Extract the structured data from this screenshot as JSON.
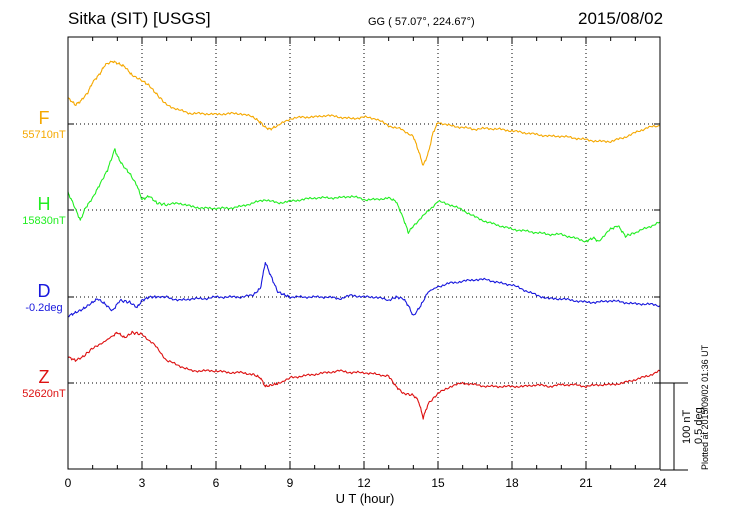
{
  "header": {
    "station": "Sitka (SIT)  [USGS]",
    "coords": "GG ( 57.07°, 224.67°)",
    "date": "2015/08/02"
  },
  "footer": {
    "plotted": "Plotted at 2015/09/02 01:36 UT"
  },
  "scale": {
    "line1": "100 nT",
    "line2": "0.5 deg"
  },
  "chart_data": {
    "type": "line",
    "xlabel": "U T (hour)",
    "xlim": [
      0,
      24
    ],
    "xticks": [
      0,
      3,
      6,
      9,
      12,
      15,
      18,
      21,
      24
    ],
    "grid": true,
    "scale_bar": "100 nT / 0.5 deg",
    "series": [
      {
        "name": "F",
        "baseline_label": "55710nT",
        "color": "#f5a800",
        "unit": "nT",
        "x": [
          0,
          0.3,
          0.5,
          0.8,
          1.0,
          1.3,
          1.5,
          1.8,
          2.0,
          2.3,
          2.6,
          3.0,
          3.3,
          3.6,
          4.0,
          4.5,
          5.0,
          5.5,
          6.0,
          6.5,
          7.0,
          7.5,
          7.8,
          8.0,
          8.2,
          8.5,
          9.0,
          9.5,
          10,
          10.5,
          11,
          11.5,
          12,
          12.5,
          13,
          13.5,
          14,
          14.2,
          14.4,
          14.6,
          14.8,
          15,
          15.5,
          16,
          16.5,
          17,
          17.5,
          18,
          18.5,
          19,
          19.5,
          20,
          20.5,
          21,
          21.5,
          22,
          22.5,
          23,
          23.5,
          24
        ],
        "values": [
          30,
          22,
          26,
          36,
          48,
          58,
          68,
          72,
          70,
          66,
          56,
          50,
          44,
          34,
          22,
          16,
          12,
          12,
          11,
          12,
          12,
          8,
          2,
          -4,
          -6,
          -2,
          6,
          8,
          8,
          10,
          8,
          6,
          8,
          6,
          -2,
          -6,
          -14,
          -30,
          -48,
          -34,
          -10,
          2,
          -2,
          -4,
          -6,
          -5,
          -6,
          -8,
          -10,
          -12,
          -14,
          -14,
          -16,
          -18,
          -20,
          -20,
          -16,
          -10,
          -4,
          -2
        ]
      },
      {
        "name": "H",
        "baseline_label": "15830nT",
        "color": "#22ee22",
        "unit": "nT",
        "x": [
          0,
          0.2,
          0.5,
          0.7,
          1.0,
          1.3,
          1.6,
          1.9,
          2.0,
          2.2,
          2.5,
          2.8,
          3.0,
          3.3,
          3.6,
          4.0,
          4.5,
          5,
          5.5,
          6,
          6.5,
          7,
          7.5,
          8,
          8.5,
          9,
          9.5,
          10,
          10.5,
          11,
          11.5,
          12,
          12.5,
          13,
          13.3,
          13.6,
          13.8,
          14,
          14.5,
          15,
          15.5,
          16,
          16.5,
          17,
          17.5,
          18,
          18.5,
          19,
          19.5,
          20,
          20.5,
          21,
          21.3,
          21.5,
          22,
          22.3,
          22.6,
          23,
          23.5,
          24
        ],
        "values": [
          20,
          8,
          -12,
          2,
          14,
          30,
          46,
          70,
          62,
          52,
          42,
          28,
          12,
          16,
          8,
          6,
          8,
          4,
          2,
          2,
          2,
          4,
          8,
          12,
          8,
          10,
          12,
          14,
          14,
          14,
          16,
          12,
          12,
          14,
          10,
          -10,
          -26,
          -18,
          -4,
          10,
          6,
          0,
          -8,
          -14,
          -18,
          -22,
          -24,
          -26,
          -28,
          -28,
          -32,
          -36,
          -32,
          -36,
          -22,
          -18,
          -30,
          -26,
          -20,
          -14
        ]
      },
      {
        "name": "D",
        "baseline_label": "-0.2deg",
        "color": "#1818dd",
        "unit": "deg",
        "x": [
          0,
          0.3,
          0.6,
          0.9,
          1.2,
          1.5,
          1.8,
          2.1,
          2.5,
          2.8,
          3.0,
          3.3,
          3.6,
          4,
          4.5,
          5,
          5.5,
          6,
          6.5,
          7,
          7.5,
          7.8,
          8.0,
          8.2,
          8.5,
          8.8,
          9,
          9.5,
          10,
          10.5,
          11,
          11.5,
          12,
          12.5,
          13,
          13.3,
          13.6,
          13.8,
          14,
          14.3,
          14.6,
          15,
          15.5,
          16,
          16.5,
          17,
          17.5,
          18,
          18.5,
          19,
          19.5,
          20,
          20.5,
          21,
          21.5,
          22,
          22.5,
          23,
          23.5,
          24
        ],
        "values": [
          -0.11,
          -0.09,
          -0.07,
          -0.04,
          -0.01,
          -0.04,
          -0.08,
          -0.02,
          -0.03,
          -0.06,
          -0.02,
          0.0,
          0.0,
          0.0,
          -0.02,
          -0.01,
          -0.01,
          0.0,
          0.0,
          0.0,
          0.01,
          0.05,
          0.2,
          0.13,
          0.03,
          0.01,
          0.0,
          0.0,
          0.0,
          0.0,
          -0.01,
          0.01,
          0.0,
          0.0,
          -0.02,
          0.0,
          -0.01,
          -0.05,
          -0.11,
          -0.05,
          0.03,
          0.06,
          0.08,
          0.09,
          0.1,
          0.1,
          0.08,
          0.07,
          0.04,
          0.01,
          -0.01,
          -0.01,
          -0.02,
          -0.03,
          -0.03,
          -0.02,
          -0.03,
          -0.04,
          -0.04,
          -0.05
        ]
      },
      {
        "name": "Z",
        "baseline_label": "52620nT",
        "color": "#dd1111",
        "unit": "nT",
        "x": [
          0,
          0.3,
          0.6,
          1.0,
          1.4,
          1.8,
          2.0,
          2.3,
          2.6,
          3.0,
          3.5,
          4,
          4.5,
          5,
          5.5,
          6,
          6.5,
          7,
          7.5,
          7.8,
          8.0,
          8.3,
          8.6,
          9,
          9.5,
          10,
          10.5,
          11,
          11.5,
          12,
          12.5,
          13,
          13.3,
          13.6,
          14,
          14.2,
          14.4,
          14.6,
          15,
          15.5,
          16,
          16.5,
          17,
          17.5,
          18,
          18.5,
          19,
          19.5,
          20,
          20.5,
          21,
          21.5,
          22,
          22.5,
          23,
          23.5,
          24
        ],
        "values": [
          30,
          26,
          30,
          40,
          46,
          54,
          58,
          52,
          58,
          56,
          44,
          26,
          20,
          14,
          14,
          14,
          12,
          12,
          10,
          6,
          -4,
          -2,
          0,
          6,
          8,
          10,
          12,
          14,
          12,
          12,
          10,
          8,
          -4,
          -12,
          -14,
          -20,
          -40,
          -24,
          -12,
          -4,
          0,
          -2,
          -4,
          -4,
          -4,
          -4,
          -2,
          -4,
          -2,
          -2,
          -4,
          -2,
          -2,
          0,
          4,
          8,
          14
        ]
      }
    ]
  }
}
